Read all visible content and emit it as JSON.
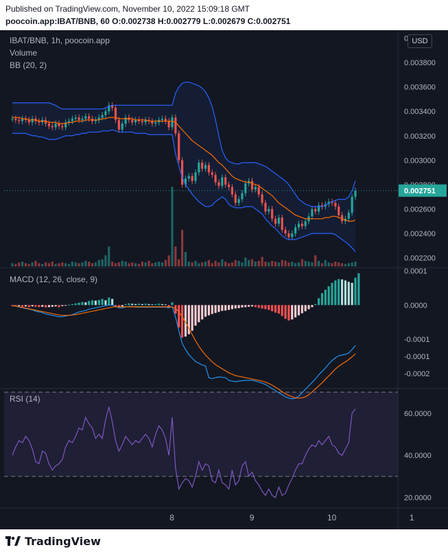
{
  "header": {
    "published": "Published on TradingView.com, November 10, 2022 15:09:18 GMT",
    "symbol_line": "poocoin.app:IBAT/BNB, 60 O:0.002738 H:0.002779 L:0.002679 C:0.002751"
  },
  "legend": {
    "title": "IBAT/BNB, 1h, poocoin.app",
    "volume": "Volume",
    "bb": "BB (20, 2)",
    "macd": "MACD (12, 26, close, 9)",
    "rsi": "RSI (14)"
  },
  "currency_button": "USD",
  "footer": {
    "brand": "TradingView"
  },
  "colors": {
    "background": "#131722",
    "up": "#26a69a",
    "down": "#ef5350",
    "bb_band": "#2962ff",
    "bb_basis": "#ff6d00",
    "macd_line": "#2196f3",
    "signal_line": "#ff6d00",
    "rsi_line": "#7e57c2",
    "rsi_fill": "#7e57c2"
  },
  "chart_data": [
    {
      "type": "candlestick",
      "title": "IBAT/BNB, 1h, poocoin.app",
      "x_tick_labels": [
        "8",
        "9",
        "10",
        "1"
      ],
      "y_tick_labels": [
        "0.002200",
        "0.002400",
        "0.002600",
        "0.002800",
        "0.003000",
        "0.003200",
        "0.003400",
        "0.003600",
        "0.003800",
        "0"
      ],
      "ylim": [
        0.00213,
        0.00402
      ],
      "last_price": "0.002751",
      "closes": [
        0.00334,
        0.00333,
        0.00332,
        0.00334,
        0.00333,
        0.00331,
        0.00334,
        0.00332,
        0.00331,
        0.00333,
        0.0033,
        0.00328,
        0.00327,
        0.0033,
        0.00328,
        0.00327,
        0.00331,
        0.00332,
        0.00334,
        0.00335,
        0.00333,
        0.00334,
        0.00336,
        0.00334,
        0.00332,
        0.00333,
        0.00335,
        0.00337,
        0.0034,
        0.00345,
        0.00343,
        0.00333,
        0.00325,
        0.0033,
        0.00335,
        0.00333,
        0.00331,
        0.00333,
        0.00332,
        0.00331,
        0.00333,
        0.00332,
        0.0033,
        0.00331,
        0.00333,
        0.00334,
        0.00332,
        0.00327,
        0.00335,
        0.00322,
        0.003,
        0.0028,
        0.00285,
        0.00287,
        0.00283,
        0.0029,
        0.00298,
        0.00293,
        0.00296,
        0.0029,
        0.00288,
        0.00282,
        0.00279,
        0.00286,
        0.0028,
        0.00278,
        0.00272,
        0.00265,
        0.00268,
        0.00273,
        0.00281,
        0.00283,
        0.00276,
        0.00278,
        0.00272,
        0.00265,
        0.00258,
        0.0026,
        0.00252,
        0.00248,
        0.00253,
        0.00243,
        0.0024,
        0.00237,
        0.0024,
        0.00245,
        0.00248,
        0.00246,
        0.0025,
        0.00254,
        0.0026,
        0.00258,
        0.00263,
        0.00262,
        0.00264,
        0.00266,
        0.00265,
        0.00262,
        0.00255,
        0.0025,
        0.00252,
        0.00257,
        0.0027,
        0.00275
      ],
      "bb_upper": [
        0.00347,
        0.00347,
        0.00347,
        0.00347,
        0.00347,
        0.00347,
        0.00347,
        0.00347,
        0.00347,
        0.00347,
        0.00347,
        0.00347,
        0.00346,
        0.00345,
        0.00343,
        0.00342,
        0.00342,
        0.00342,
        0.00342,
        0.00342,
        0.00342,
        0.00342,
        0.00342,
        0.00342,
        0.00342,
        0.00342,
        0.00342,
        0.00342,
        0.00343,
        0.00344,
        0.00345,
        0.00345,
        0.00345,
        0.00345,
        0.00345,
        0.00345,
        0.00345,
        0.00345,
        0.00345,
        0.00345,
        0.00345,
        0.00345,
        0.00345,
        0.00345,
        0.00345,
        0.00345,
        0.00345,
        0.00345,
        0.00345,
        0.00355,
        0.0036,
        0.00363,
        0.00364,
        0.00364,
        0.00363,
        0.00362,
        0.00361,
        0.00359,
        0.00356,
        0.00351,
        0.00344,
        0.00333,
        0.0032,
        0.00308,
        0.00302,
        0.00299,
        0.00298,
        0.00297,
        0.00297,
        0.00298,
        0.00298,
        0.00298,
        0.00298,
        0.00298,
        0.00297,
        0.00296,
        0.00295,
        0.00293,
        0.00291,
        0.00289,
        0.00287,
        0.00285,
        0.00283,
        0.0028,
        0.00276,
        0.00272,
        0.00268,
        0.00266,
        0.00264,
        0.00263,
        0.00262,
        0.00262,
        0.00262,
        0.00262,
        0.00263,
        0.00265,
        0.00266,
        0.00267,
        0.00268,
        0.00268,
        0.00268,
        0.0027,
        0.00275,
        0.00283
      ],
      "bb_basis": [
        0.00335,
        0.00335,
        0.00335,
        0.00334,
        0.00334,
        0.00333,
        0.00333,
        0.00333,
        0.00332,
        0.00332,
        0.00332,
        0.00331,
        0.00331,
        0.00331,
        0.0033,
        0.0033,
        0.0033,
        0.00331,
        0.00331,
        0.00332,
        0.00332,
        0.00332,
        0.00333,
        0.00333,
        0.00333,
        0.00333,
        0.00333,
        0.00334,
        0.00334,
        0.00335,
        0.00335,
        0.00335,
        0.00334,
        0.00334,
        0.00334,
        0.00334,
        0.00334,
        0.00333,
        0.00333,
        0.00333,
        0.00333,
        0.00332,
        0.00332,
        0.00332,
        0.00332,
        0.00332,
        0.00332,
        0.00332,
        0.00332,
        0.00331,
        0.00328,
        0.00325,
        0.00322,
        0.00319,
        0.00316,
        0.00314,
        0.00312,
        0.0031,
        0.00308,
        0.00306,
        0.00304,
        0.00301,
        0.00298,
        0.00296,
        0.00293,
        0.0029,
        0.00287,
        0.00285,
        0.00284,
        0.00283,
        0.00282,
        0.00282,
        0.00281,
        0.0028,
        0.00279,
        0.00277,
        0.00275,
        0.00273,
        0.00271,
        0.00268,
        0.00265,
        0.00263,
        0.00261,
        0.00259,
        0.00257,
        0.00255,
        0.00254,
        0.00253,
        0.00252,
        0.00252,
        0.00252,
        0.00252,
        0.00252,
        0.00252,
        0.00253,
        0.00253,
        0.00254,
        0.00254,
        0.00253,
        0.00252,
        0.00251,
        0.0025,
        0.0025,
        0.00251
      ],
      "bb_lower": [
        0.00322,
        0.00322,
        0.00322,
        0.00322,
        0.00322,
        0.00321,
        0.0032,
        0.0032,
        0.00319,
        0.00319,
        0.00318,
        0.00317,
        0.00317,
        0.00317,
        0.00318,
        0.00319,
        0.0032,
        0.0032,
        0.0032,
        0.00321,
        0.00321,
        0.00322,
        0.00322,
        0.00323,
        0.00323,
        0.00323,
        0.00323,
        0.00324,
        0.00324,
        0.00324,
        0.00325,
        0.00324,
        0.00323,
        0.00323,
        0.00323,
        0.00323,
        0.00323,
        0.00322,
        0.00322,
        0.00322,
        0.00322,
        0.00321,
        0.00321,
        0.00321,
        0.00321,
        0.00321,
        0.00321,
        0.00321,
        0.00321,
        0.00305,
        0.00295,
        0.00286,
        0.0028,
        0.00276,
        0.00272,
        0.00269,
        0.00266,
        0.00264,
        0.00262,
        0.00262,
        0.00263,
        0.00266,
        0.00268,
        0.0027,
        0.00268,
        0.00264,
        0.00262,
        0.00261,
        0.00261,
        0.00261,
        0.00262,
        0.00262,
        0.00262,
        0.0026,
        0.00258,
        0.00256,
        0.00252,
        0.00249,
        0.00246,
        0.00244,
        0.00241,
        0.00238,
        0.00236,
        0.00235,
        0.00235,
        0.00235,
        0.00236,
        0.00237,
        0.00238,
        0.00239,
        0.0024,
        0.0024,
        0.0024,
        0.0024,
        0.0024,
        0.0024,
        0.0024,
        0.00239,
        0.00237,
        0.00235,
        0.00233,
        0.00231,
        0.00228,
        0.00225
      ]
    },
    {
      "type": "bar",
      "title": "Volume",
      "ylim": [
        0,
        100
      ],
      "values": [
        4,
        3,
        5,
        6,
        4,
        3,
        5,
        7,
        4,
        3,
        5,
        4,
        6,
        3,
        4,
        5,
        4,
        3,
        6,
        5,
        4,
        5,
        7,
        6,
        4,
        5,
        8,
        9,
        14,
        25,
        6,
        4,
        5,
        7,
        6,
        4,
        5,
        4,
        3,
        6,
        5,
        7,
        4,
        5,
        6,
        5,
        8,
        14,
        100,
        25,
        9,
        46,
        18,
        6,
        5,
        7,
        4,
        5,
        6,
        8,
        4,
        7,
        5,
        9,
        6,
        4,
        5,
        8,
        7,
        5,
        11,
        8,
        9,
        6,
        7,
        12,
        6,
        5,
        7,
        6,
        5,
        8,
        7,
        5,
        6,
        4,
        5,
        9,
        7,
        6,
        5,
        14,
        7,
        4,
        8,
        5,
        4,
        6,
        5,
        4,
        3,
        4,
        5,
        6
      ]
    },
    {
      "type": "bar",
      "title": "MACD (12, 26, close, 9)",
      "y_tick_labels": [
        "-0.0002",
        "-0.0001",
        "-0.0001",
        "0.0000",
        "0.0001"
      ],
      "ylim": [
        -0.00024,
        0.000105
      ],
      "histogram": [
        -3e-06,
        -4e-06,
        -3e-06,
        -5e-06,
        -4e-06,
        -6e-06,
        -4e-06,
        -5e-06,
        -6e-06,
        -5e-06,
        -7e-06,
        -6e-06,
        -5e-06,
        -4e-06,
        -6e-06,
        -3e-06,
        -2e-06,
        1e-06,
        3e-06,
        5e-06,
        7e-06,
        9e-06,
        8e-06,
        1.2e-05,
        1.4e-05,
        1.3e-05,
        1.5e-05,
        1.8e-05,
        1.4e-05,
        2.2e-05,
        1.8e-05,
        -3e-06,
        -7e-06,
        -4e-06,
        3e-06,
        5e-06,
        4e-06,
        3e-06,
        4e-06,
        3e-06,
        4e-06,
        3e-06,
        2e-06,
        3e-06,
        4e-06,
        3e-06,
        2e-06,
        -4e-06,
        8e-06,
        -2.5e-05,
        -6.5e-05,
        -9.5e-05,
        -9.2e-05,
        -8.5e-05,
        -7.5e-05,
        -6e-05,
        -5e-05,
        -4.2e-05,
        -3.4e-05,
        -3e-05,
        -2.6e-05,
        -2.3e-05,
        -2e-05,
        -1.7e-05,
        -1.6e-05,
        -1.4e-05,
        -1.2e-05,
        -1e-05,
        -9e-06,
        -7e-06,
        -6e-06,
        -5e-06,
        -4e-06,
        -6e-06,
        -8e-06,
        -1e-05,
        -1.2e-05,
        -1.4e-05,
        -1.8e-05,
        -2.2e-05,
        -2.5e-05,
        -3.2e-05,
        -4e-05,
        -4.5e-05,
        -4.2e-05,
        -3.6e-05,
        -3e-05,
        -2.4e-05,
        -1.8e-05,
        -1.2e-05,
        -6e-06,
        3e-06,
        2e-05,
        3.5e-05,
        4.5e-05,
        5.5e-05,
        6.5e-05,
        7.2e-05,
        7.6e-05,
        7.5e-05,
        7.2e-05,
        6.8e-05,
        6.5e-05,
        8e-05,
        9.3e-05
      ],
      "macd": [
        -1e-06,
        -3e-06,
        -6e-06,
        -8e-06,
        -1e-05,
        -1.2e-05,
        -1.4e-05,
        -1.8e-05,
        -2e-05,
        -2.2e-05,
        -2.6e-05,
        -2.8e-05,
        -3e-05,
        -3.2e-05,
        -3.4e-05,
        -3.4e-05,
        -3.2e-05,
        -3e-05,
        -2.8e-05,
        -2.4e-05,
        -2e-05,
        -1.8e-05,
        -1.6e-05,
        -1.2e-05,
        -1e-05,
        -8e-06,
        -6e-06,
        -4e-06,
        -2e-06,
        0,
        0,
        -4e-06,
        -8e-06,
        -8e-06,
        -6e-06,
        -4e-06,
        -4e-06,
        -6e-06,
        -6e-06,
        -6e-06,
        -6e-06,
        -6e-06,
        -6e-06,
        -6e-06,
        -6e-06,
        -6e-06,
        -6e-06,
        -8e-06,
        -4e-06,
        -3.5e-05,
        -7.5e-05,
        -0.000112,
        -0.00013,
        -0.000145,
        -0.000155,
        -0.000165,
        -0.00017,
        -0.000175,
        -0.000178,
        -0.000212,
        -0.000215,
        -0.000212,
        -0.00021,
        -0.000211,
        -0.000212,
        -0.00022,
        -0.000222,
        -0.000224,
        -0.000222,
        -0.000221,
        -0.00022,
        -0.00022,
        -0.00022,
        -0.000222,
        -0.000225,
        -0.000228,
        -0.000232,
        -0.000238,
        -0.000244,
        -0.00025,
        -0.000256,
        -0.000262,
        -0.000268,
        -0.000272,
        -0.000274,
        -0.000272,
        -0.000266,
        -0.000256,
        -0.000246,
        -0.000236,
        -0.000226,
        -0.000216,
        -0.000204,
        -0.000194,
        -0.000184,
        -0.000172,
        -0.000162,
        -0.000154,
        -0.000148,
        -0.000146,
        -0.000144,
        -0.00014,
        -0.00013,
        -0.000118
      ],
      "signal": [
        -2e-06,
        -3e-06,
        -5e-06,
        -7e-06,
        -9e-06,
        -1.1e-05,
        -1.3e-05,
        -1.5e-05,
        -1.7e-05,
        -1.9e-05,
        -2.1e-05,
        -2.3e-05,
        -2.5e-05,
        -2.7e-05,
        -2.9e-05,
        -3e-05,
        -3e-05,
        -3e-05,
        -2.9e-05,
        -2.8e-05,
        -2.6e-05,
        -2.4e-05,
        -2.2e-05,
        -2e-05,
        -1.8e-05,
        -1.6e-05,
        -1.4e-05,
        -1.2e-05,
        -1e-05,
        -8e-06,
        -6e-06,
        -5e-06,
        -5e-06,
        -5e-06,
        -5e-06,
        -5e-06,
        -5e-06,
        -5e-06,
        -5e-06,
        -5e-06,
        -5e-06,
        -5e-06,
        -5e-06,
        -5e-06,
        -5e-06,
        -5e-06,
        -5e-06,
        -5e-06,
        -6e-06,
        -1e-05,
        -2e-05,
        -3.4e-05,
        -5e-05,
        -6.8e-05,
        -8.6e-05,
        -0.000104,
        -0.00012,
        -0.000134,
        -0.000146,
        -0.000156,
        -0.000166,
        -0.000174,
        -0.00018,
        -0.000186,
        -0.000192,
        -0.000198,
        -0.000202,
        -0.000206,
        -0.000208,
        -0.00021,
        -0.000212,
        -0.000214,
        -0.000216,
        -0.000218,
        -0.00022,
        -0.000222,
        -0.000225,
        -0.000229,
        -0.000234,
        -0.00024,
        -0.000246,
        -0.000253,
        -0.000259,
        -0.000264,
        -0.000268,
        -0.000271,
        -0.000272,
        -0.000271,
        -0.000268,
        -0.000262,
        -0.000254,
        -0.000245,
        -0.000236,
        -0.000227,
        -0.000217,
        -0.000207,
        -0.000197,
        -0.000187,
        -0.000179,
        -0.000172,
        -0.000166,
        -0.000159,
        -0.000151,
        -0.000142
      ]
    },
    {
      "type": "line",
      "title": "RSI (14)",
      "y_tick_labels": [
        "20.0000",
        "40.0000",
        "60.0000"
      ],
      "ylim": [
        15,
        71
      ],
      "bands": [
        30,
        70
      ],
      "values": [
        40,
        44,
        47,
        46,
        49,
        47,
        43,
        37,
        36,
        42,
        41,
        36,
        33,
        35,
        36,
        38,
        44,
        47,
        46,
        49,
        53,
        52,
        58,
        55,
        53,
        48,
        50,
        48,
        57,
        63,
        56,
        47,
        42,
        45,
        49,
        47,
        45,
        47,
        46,
        48,
        50,
        48,
        44,
        50,
        54,
        52,
        48,
        40,
        58,
        34,
        24,
        27,
        29,
        28,
        25,
        30,
        37,
        33,
        36,
        35,
        28,
        27,
        33,
        27,
        26,
        24,
        33,
        26,
        28,
        35,
        37,
        30,
        32,
        28,
        26,
        23,
        21,
        24,
        21,
        20,
        25,
        21,
        22,
        26,
        29,
        33,
        36,
        36,
        40,
        43,
        45,
        44,
        47,
        45,
        47,
        49,
        45,
        44,
        41,
        40,
        43,
        46,
        60,
        62
      ]
    }
  ]
}
